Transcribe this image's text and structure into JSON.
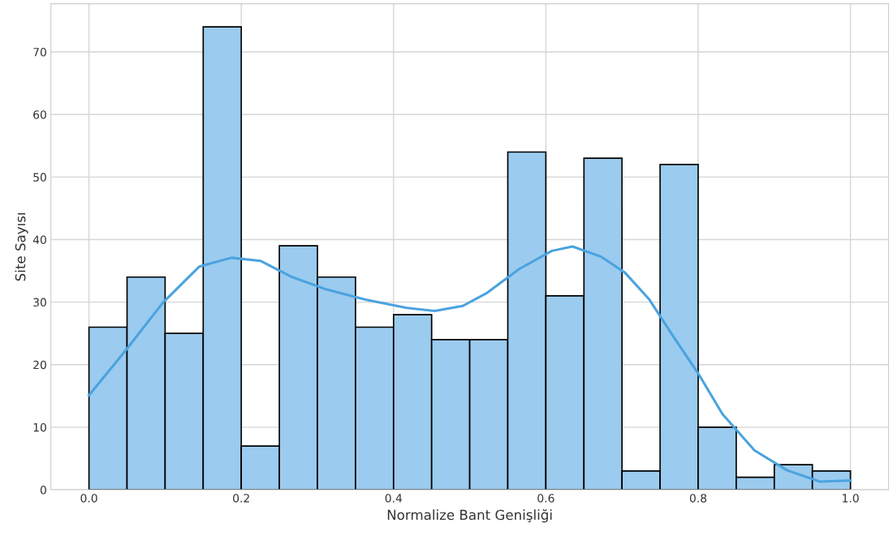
{
  "chart_data": {
    "type": "histogram",
    "xlabel": "Normalize Bant Genişliği",
    "ylabel": "Site Sayısı",
    "bins": [
      0.0,
      0.05,
      0.1,
      0.15,
      0.2,
      0.25,
      0.3,
      0.35,
      0.4,
      0.45,
      0.5,
      0.55,
      0.6,
      0.65,
      0.7,
      0.75,
      0.8,
      0.85,
      0.9,
      0.95,
      1.0
    ],
    "series": [
      {
        "color": "#9bcbee",
        "values": [
          26,
          34,
          25,
          74,
          7,
          39,
          34,
          26,
          28,
          24,
          24,
          54,
          31,
          53,
          3,
          52,
          10,
          2,
          4,
          3
        ]
      },
      {
        "type": "line",
        "color": "#4aa3df",
        "x": [
          0,
          0.049,
          0.097,
          0.145,
          0.187,
          0.225,
          0.267,
          0.31,
          0.363,
          0.416,
          0.454,
          0.491,
          0.523,
          0.565,
          0.608,
          0.635,
          0.672,
          0.704,
          0.736,
          0.768,
          0.8,
          0.832,
          0.874,
          0.917,
          0.96,
          1.0
        ],
        "values": [
          15.1,
          22.4,
          29.9,
          35.7,
          37.1,
          36.6,
          34.0,
          32.1,
          30.4,
          29.1,
          28.6,
          29.4,
          31.5,
          35.3,
          38.2,
          38.9,
          37.3,
          34.7,
          30.4,
          24.4,
          18.6,
          12.1,
          6.3,
          3.1,
          1.3,
          1.5
        ]
      }
    ],
    "xlim": [
      -0.05,
      1.05
    ],
    "xticks": [
      {
        "value": 0,
        "label": "0.0"
      },
      0.2,
      0.4,
      0.6,
      0.8,
      {
        "value": 1,
        "label": "1.0"
      }
    ],
    "ylim": [
      0,
      77.7
    ],
    "yticks": [
      0,
      10,
      20,
      30,
      40,
      50,
      60,
      70
    ],
    "grid": true,
    "legend": false
  }
}
